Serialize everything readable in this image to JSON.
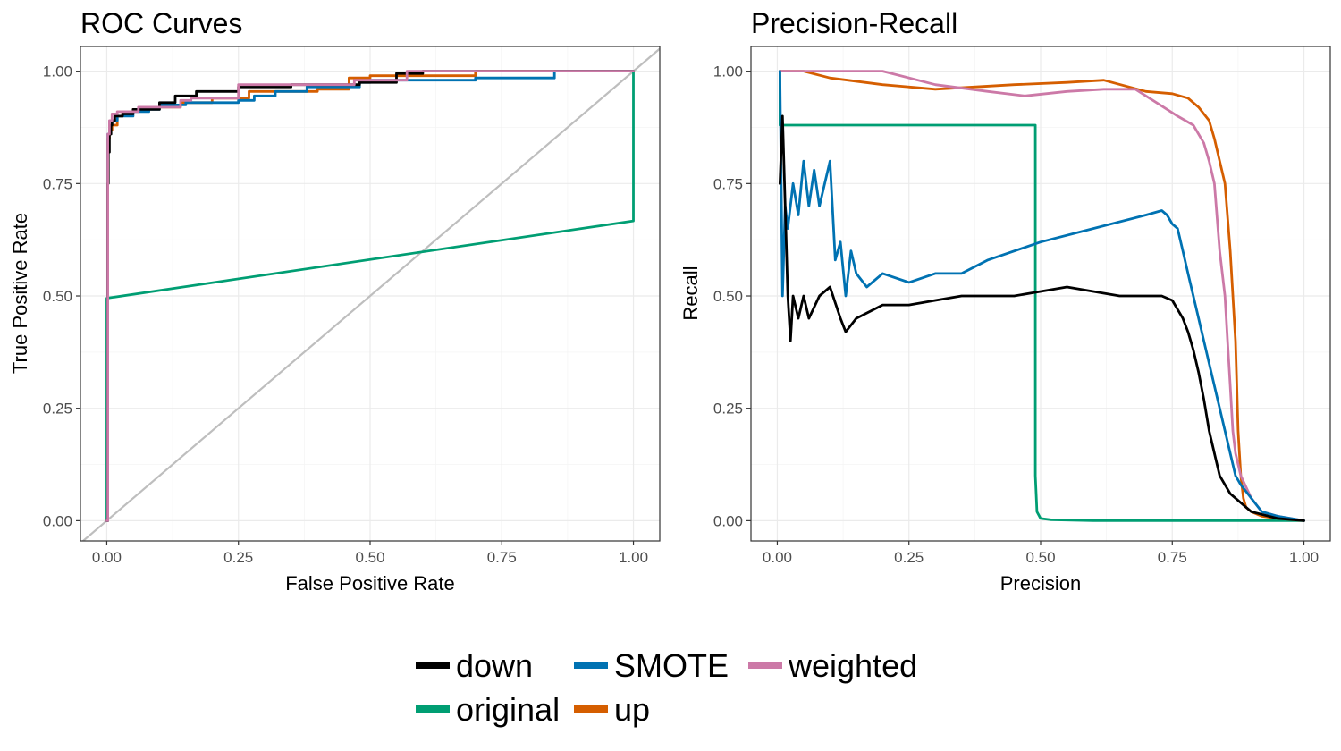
{
  "colors": {
    "down": "#000000",
    "SMOTE": "#0072B2",
    "weighted": "#CC79A7",
    "original": "#009E73",
    "up": "#D55E00",
    "diagonal": "#BEBEBE"
  },
  "legend": {
    "items": [
      {
        "key": "down",
        "label": "down"
      },
      {
        "key": "SMOTE",
        "label": "SMOTE"
      },
      {
        "key": "weighted",
        "label": "weighted"
      },
      {
        "key": "original",
        "label": "original"
      },
      {
        "key": "up",
        "label": "up"
      }
    ]
  },
  "chart_data": [
    {
      "type": "line",
      "title": "ROC Curves",
      "xlabel": "False Positive Rate",
      "ylabel": "True Positive Rate",
      "xlim": [
        -0.05,
        1.05
      ],
      "ylim": [
        -0.045,
        1.055
      ],
      "xticks": [
        0,
        0.25,
        0.5,
        0.75,
        1
      ],
      "xtick_labels": [
        "0.00",
        "0.25",
        "0.50",
        "0.75",
        "1.00"
      ],
      "yticks": [
        0,
        0.25,
        0.5,
        0.75,
        1
      ],
      "ytick_labels": [
        "0.00",
        "0.25",
        "0.50",
        "0.75",
        "1.00"
      ],
      "grid": true,
      "reference_line": {
        "x": [
          -0.05,
          1.05
        ],
        "y": [
          -0.05,
          1.05
        ],
        "color_key": "diagonal"
      },
      "series": [
        {
          "name": "original",
          "step": false,
          "x": [
            0,
            0,
            1,
            1
          ],
          "y": [
            0,
            0.495,
            0.667,
            1
          ]
        },
        {
          "name": "up",
          "step": true,
          "x": [
            0,
            0.002,
            0.005,
            0.01,
            0.02,
            0.03,
            0.05,
            0.08,
            0.14,
            0.2,
            0.27,
            0.4,
            0.46,
            0.5,
            0.7,
            1.0
          ],
          "y": [
            0,
            0.85,
            0.87,
            0.88,
            0.9,
            0.91,
            0.915,
            0.92,
            0.93,
            0.94,
            0.955,
            0.96,
            0.985,
            0.99,
            1.0,
            1.0
          ]
        },
        {
          "name": "SMOTE",
          "step": true,
          "x": [
            0,
            0.002,
            0.005,
            0.01,
            0.02,
            0.05,
            0.08,
            0.1,
            0.15,
            0.25,
            0.28,
            0.32,
            0.38,
            0.48,
            0.5,
            0.7,
            0.85,
            0.85,
            1.0
          ],
          "y": [
            0,
            0.86,
            0.88,
            0.89,
            0.9,
            0.91,
            0.915,
            0.925,
            0.93,
            0.935,
            0.945,
            0.955,
            0.965,
            0.975,
            0.98,
            0.985,
            0.99,
            1.0,
            1.0
          ]
        },
        {
          "name": "down",
          "step": true,
          "x": [
            0,
            0.002,
            0.003,
            0.005,
            0.008,
            0.01,
            0.015,
            0.03,
            0.05,
            0.1,
            0.13,
            0.17,
            0.25,
            0.35,
            0.48,
            0.55,
            0.6,
            0.7,
            1.0
          ],
          "y": [
            0,
            0.75,
            0.82,
            0.86,
            0.88,
            0.89,
            0.9,
            0.905,
            0.915,
            0.93,
            0.945,
            0.955,
            0.965,
            0.97,
            0.975,
            0.995,
            1.0,
            1.0,
            1.0
          ]
        },
        {
          "name": "weighted",
          "step": true,
          "x": [
            0,
            0.002,
            0.005,
            0.01,
            0.02,
            0.04,
            0.06,
            0.1,
            0.14,
            0.16,
            0.25,
            0.47,
            0.57,
            1.0
          ],
          "y": [
            0,
            0.86,
            0.89,
            0.905,
            0.91,
            0.91,
            0.92,
            0.92,
            0.935,
            0.94,
            0.97,
            0.98,
            1.0,
            1.0
          ]
        }
      ]
    },
    {
      "type": "line",
      "title": "Precision-Recall",
      "xlabel": "Precision",
      "ylabel": "Recall",
      "xlim": [
        -0.05,
        1.05
      ],
      "ylim": [
        -0.045,
        1.055
      ],
      "xticks": [
        0,
        0.25,
        0.5,
        0.75,
        1
      ],
      "xtick_labels": [
        "0.00",
        "0.25",
        "0.50",
        "0.75",
        "1.00"
      ],
      "yticks": [
        0,
        0.25,
        0.5,
        0.75,
        1
      ],
      "ytick_labels": [
        "0.00",
        "0.25",
        "0.50",
        "0.75",
        "1.00"
      ],
      "grid": true,
      "series": [
        {
          "name": "original",
          "x": [
            0.005,
            0.005,
            0.49,
            0.49,
            0.493,
            0.5,
            0.52,
            0.6,
            0.75,
            0.9,
            1.0
          ],
          "y": [
            1.0,
            0.88,
            0.88,
            0.1,
            0.02,
            0.005,
            0.002,
            0.0,
            0.0,
            0.0,
            0.0
          ]
        },
        {
          "name": "up",
          "x": [
            0.005,
            0.05,
            0.1,
            0.2,
            0.3,
            0.45,
            0.55,
            0.62,
            0.7,
            0.75,
            0.78,
            0.8,
            0.82,
            0.83,
            0.84,
            0.85,
            0.86,
            0.87,
            0.875,
            0.88,
            0.885,
            0.89,
            0.9,
            0.92,
            0.95,
            1.0
          ],
          "y": [
            1.0,
            1.0,
            0.985,
            0.97,
            0.96,
            0.97,
            0.975,
            0.98,
            0.955,
            0.95,
            0.94,
            0.92,
            0.89,
            0.85,
            0.8,
            0.75,
            0.6,
            0.4,
            0.2,
            0.1,
            0.05,
            0.03,
            0.02,
            0.01,
            0.005,
            0.0
          ]
        },
        {
          "name": "weighted",
          "x": [
            0.005,
            0.1,
            0.2,
            0.3,
            0.4,
            0.47,
            0.55,
            0.62,
            0.68,
            0.72,
            0.76,
            0.79,
            0.81,
            0.82,
            0.83,
            0.84,
            0.85,
            0.855,
            0.86,
            0.865,
            0.87,
            0.88,
            0.9,
            0.92,
            0.95,
            1.0
          ],
          "y": [
            1.0,
            1.0,
            1.0,
            0.97,
            0.955,
            0.945,
            0.955,
            0.96,
            0.96,
            0.93,
            0.9,
            0.88,
            0.84,
            0.8,
            0.75,
            0.6,
            0.5,
            0.4,
            0.3,
            0.2,
            0.15,
            0.1,
            0.05,
            0.02,
            0.01,
            0.0
          ]
        },
        {
          "name": "SMOTE",
          "x": [
            0.005,
            0.01,
            0.015,
            0.02,
            0.03,
            0.04,
            0.05,
            0.06,
            0.07,
            0.08,
            0.1,
            0.11,
            0.12,
            0.13,
            0.14,
            0.15,
            0.17,
            0.2,
            0.25,
            0.3,
            0.35,
            0.4,
            0.5,
            0.6,
            0.7,
            0.73,
            0.74,
            0.75,
            0.76,
            0.77,
            0.78,
            0.79,
            0.8,
            0.81,
            0.82,
            0.83,
            0.84,
            0.85,
            0.86,
            0.87,
            0.88,
            0.9,
            0.92,
            0.95,
            1.0
          ],
          "y": [
            1.0,
            0.5,
            0.7,
            0.65,
            0.75,
            0.68,
            0.8,
            0.7,
            0.78,
            0.7,
            0.8,
            0.58,
            0.62,
            0.5,
            0.6,
            0.55,
            0.52,
            0.55,
            0.53,
            0.55,
            0.55,
            0.58,
            0.62,
            0.65,
            0.68,
            0.69,
            0.68,
            0.66,
            0.65,
            0.6,
            0.55,
            0.5,
            0.45,
            0.4,
            0.35,
            0.3,
            0.25,
            0.2,
            0.15,
            0.1,
            0.08,
            0.05,
            0.02,
            0.01,
            0.0
          ]
        },
        {
          "name": "down",
          "x": [
            0.005,
            0.01,
            0.015,
            0.02,
            0.025,
            0.03,
            0.04,
            0.05,
            0.06,
            0.08,
            0.1,
            0.12,
            0.13,
            0.15,
            0.2,
            0.25,
            0.3,
            0.35,
            0.4,
            0.45,
            0.5,
            0.55,
            0.6,
            0.65,
            0.7,
            0.73,
            0.75,
            0.76,
            0.77,
            0.78,
            0.79,
            0.8,
            0.81,
            0.82,
            0.83,
            0.84,
            0.85,
            0.86,
            0.88,
            0.9,
            0.95,
            1.0
          ],
          "y": [
            0.75,
            0.9,
            0.7,
            0.5,
            0.4,
            0.5,
            0.45,
            0.5,
            0.45,
            0.5,
            0.52,
            0.45,
            0.42,
            0.45,
            0.48,
            0.48,
            0.49,
            0.5,
            0.5,
            0.5,
            0.51,
            0.52,
            0.51,
            0.5,
            0.5,
            0.5,
            0.49,
            0.47,
            0.45,
            0.42,
            0.38,
            0.33,
            0.27,
            0.2,
            0.15,
            0.1,
            0.08,
            0.06,
            0.04,
            0.02,
            0.005,
            0.0
          ]
        }
      ]
    }
  ]
}
